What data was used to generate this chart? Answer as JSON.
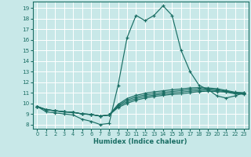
{
  "xlabel": "Humidex (Indice chaleur)",
  "xlim": [
    -0.5,
    23.5
  ],
  "ylim": [
    7.6,
    19.6
  ],
  "xticks": [
    0,
    1,
    2,
    3,
    4,
    5,
    6,
    7,
    8,
    9,
    10,
    11,
    12,
    13,
    14,
    15,
    16,
    17,
    18,
    19,
    20,
    21,
    22,
    23
  ],
  "yticks": [
    8,
    9,
    10,
    11,
    12,
    13,
    14,
    15,
    16,
    17,
    18,
    19
  ],
  "background_color": "#c8e8e8",
  "grid_color": "#ffffff",
  "line_color": "#1a6e64",
  "lines": [
    [
      9.7,
      9.2,
      9.1,
      9.0,
      8.9,
      8.5,
      8.3,
      8.0,
      8.1,
      11.7,
      16.2,
      18.3,
      17.8,
      18.3,
      19.2,
      18.3,
      15.0,
      13.0,
      11.7,
      11.3,
      10.7,
      10.5,
      10.7,
      11.0
    ],
    [
      9.7,
      9.4,
      9.3,
      9.2,
      9.15,
      9.0,
      8.95,
      8.8,
      8.9,
      9.6,
      10.0,
      10.3,
      10.5,
      10.65,
      10.75,
      10.85,
      10.9,
      11.0,
      11.1,
      11.15,
      11.1,
      11.05,
      10.9,
      10.85
    ],
    [
      9.7,
      9.4,
      9.3,
      9.2,
      9.15,
      9.0,
      8.95,
      8.8,
      8.9,
      9.7,
      10.15,
      10.45,
      10.65,
      10.78,
      10.88,
      10.98,
      11.05,
      11.15,
      11.2,
      11.25,
      11.2,
      11.1,
      10.95,
      10.9
    ],
    [
      9.7,
      9.4,
      9.3,
      9.2,
      9.15,
      9.0,
      8.95,
      8.8,
      8.9,
      9.8,
      10.3,
      10.6,
      10.8,
      10.92,
      11.02,
      11.12,
      11.2,
      11.3,
      11.35,
      11.35,
      11.28,
      11.15,
      11.0,
      10.95
    ],
    [
      9.7,
      9.4,
      9.3,
      9.2,
      9.15,
      9.0,
      8.95,
      8.8,
      8.9,
      9.9,
      10.45,
      10.75,
      10.95,
      11.08,
      11.18,
      11.28,
      11.35,
      11.45,
      11.48,
      11.45,
      11.38,
      11.22,
      11.05,
      11.0
    ]
  ]
}
